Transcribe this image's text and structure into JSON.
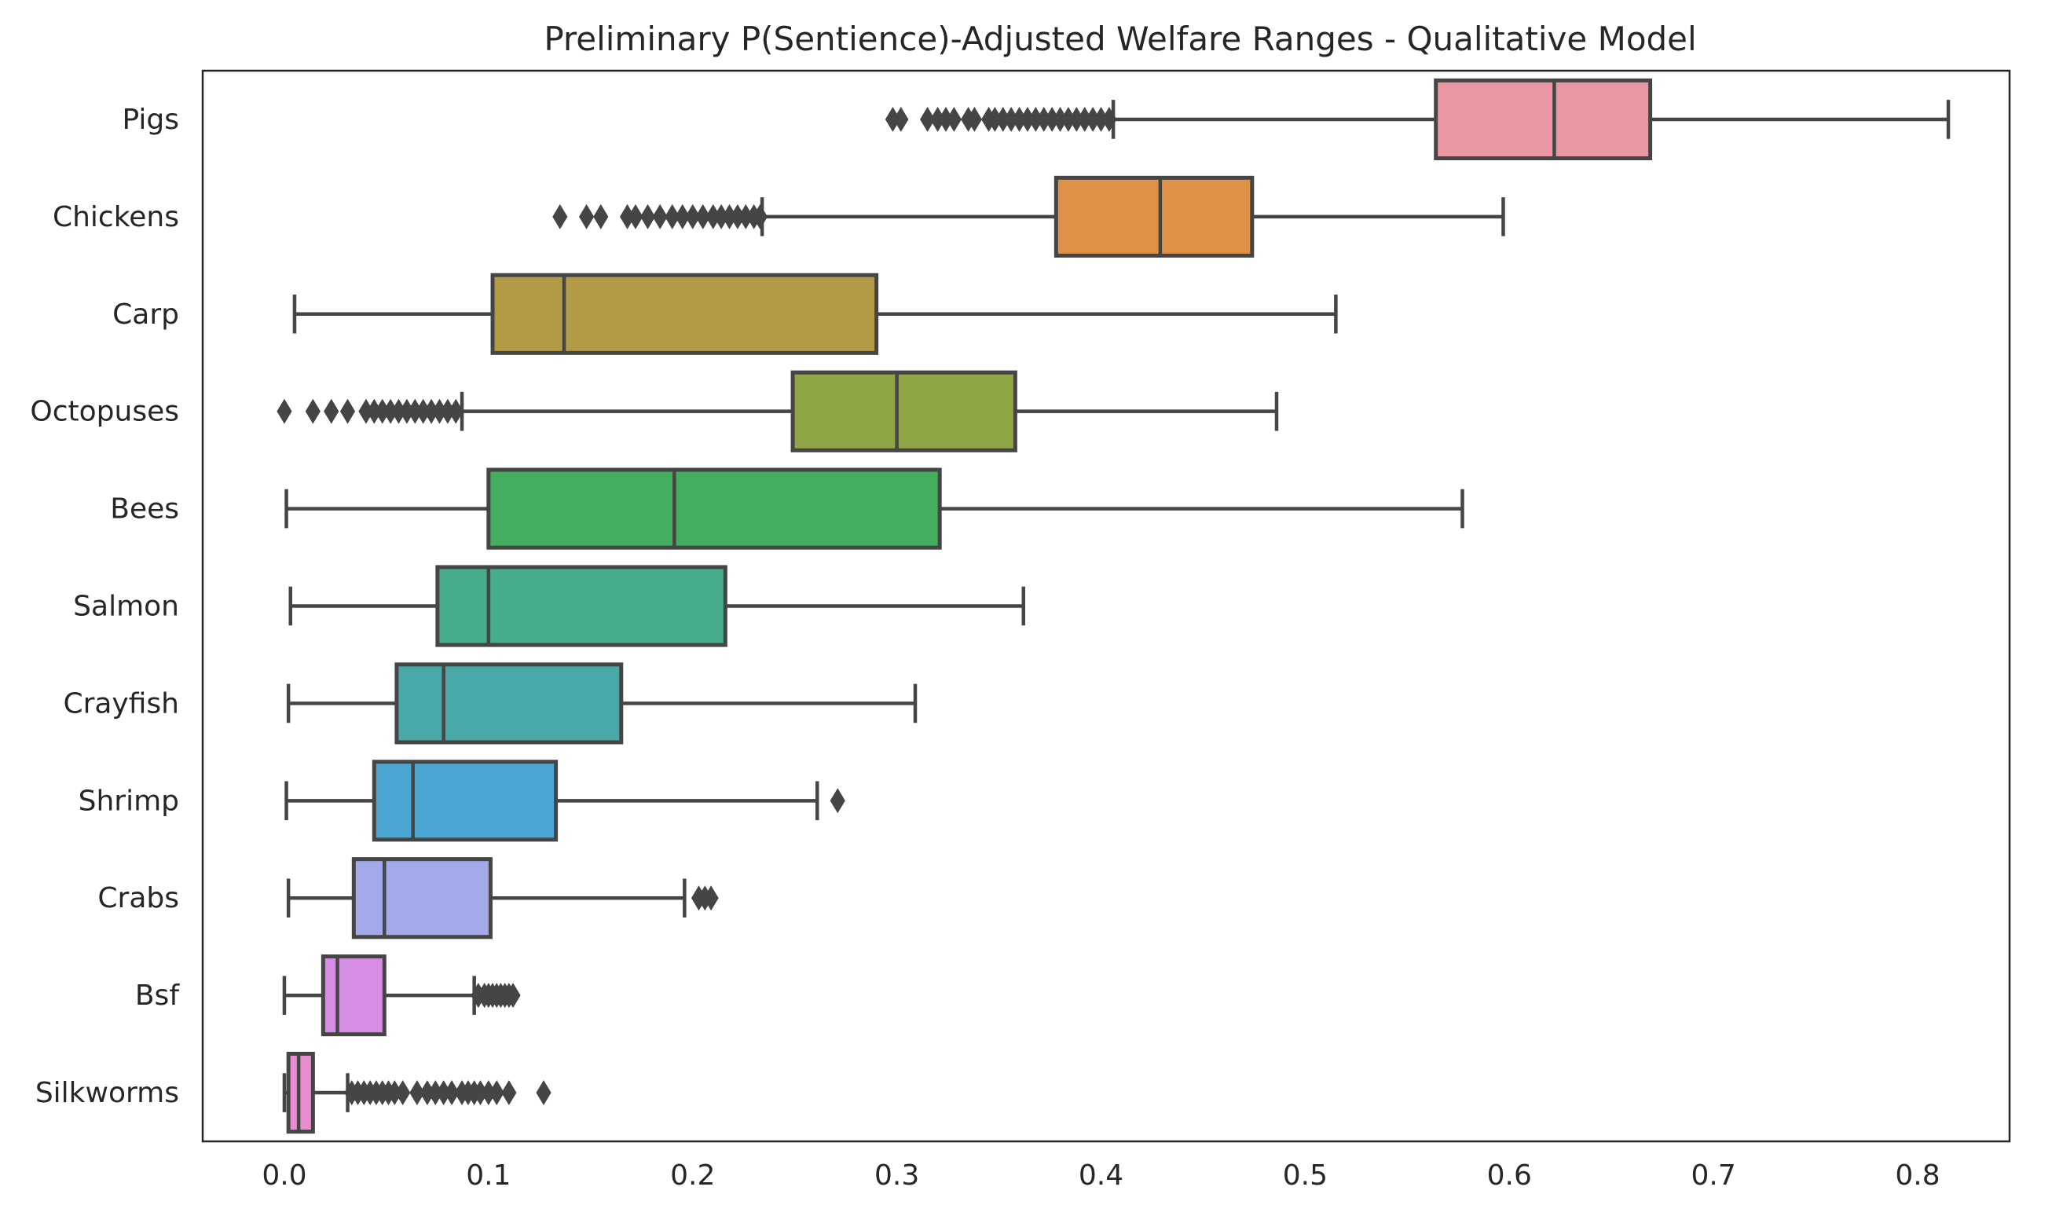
{
  "chart_data": {
    "type": "boxplot",
    "orientation": "horizontal",
    "title": "Preliminary P(Sentience)-Adjusted Welfare Ranges - Qualitative Model",
    "xlabel": "",
    "ylabel": "",
    "xlim": [
      -0.04,
      0.845
    ],
    "xticks": [
      0.0,
      0.1,
      0.2,
      0.3,
      0.4,
      0.5,
      0.6,
      0.7,
      0.8
    ],
    "xtick_labels": [
      "0.0",
      "0.1",
      "0.2",
      "0.3",
      "0.4",
      "0.5",
      "0.6",
      "0.7",
      "0.8"
    ],
    "grid": false,
    "series": [
      {
        "name": "Pigs",
        "color": "#ea96a3",
        "whisker_low": 0.406,
        "q1": 0.564,
        "median": 0.622,
        "q3": 0.669,
        "whisker_high": 0.815,
        "outliers": [
          0.298,
          0.302,
          0.315,
          0.32,
          0.324,
          0.328,
          0.335,
          0.338,
          0.345,
          0.348,
          0.352,
          0.356,
          0.36,
          0.364,
          0.368,
          0.372,
          0.376,
          0.38,
          0.384,
          0.388,
          0.392,
          0.396,
          0.4,
          0.404
        ]
      },
      {
        "name": "Chickens",
        "color": "#e09148",
        "whisker_low": 0.234,
        "q1": 0.378,
        "median": 0.429,
        "q3": 0.474,
        "whisker_high": 0.597,
        "outliers": [
          0.135,
          0.148,
          0.155,
          0.168,
          0.172,
          0.178,
          0.184,
          0.19,
          0.195,
          0.2,
          0.205,
          0.21,
          0.214,
          0.218,
          0.222,
          0.226,
          0.23,
          0.233
        ]
      },
      {
        "name": "Carp",
        "color": "#b29a47",
        "whisker_low": 0.005,
        "q1": 0.102,
        "median": 0.137,
        "q3": 0.29,
        "whisker_high": 0.515,
        "outliers": []
      },
      {
        "name": "Octopuses",
        "color": "#8ea645",
        "whisker_low": 0.087,
        "q1": 0.249,
        "median": 0.3,
        "q3": 0.358,
        "whisker_high": 0.486,
        "outliers": [
          0.0,
          0.014,
          0.023,
          0.031,
          0.04,
          0.044,
          0.048,
          0.052,
          0.056,
          0.06,
          0.064,
          0.068,
          0.072,
          0.076,
          0.08,
          0.084
        ]
      },
      {
        "name": "Bees",
        "color": "#45ad5e",
        "whisker_low": 0.001,
        "q1": 0.1,
        "median": 0.191,
        "q3": 0.321,
        "whisker_high": 0.577,
        "outliers": []
      },
      {
        "name": "Salmon",
        "color": "#47ab8e",
        "whisker_low": 0.003,
        "q1": 0.075,
        "median": 0.1,
        "q3": 0.216,
        "whisker_high": 0.362,
        "outliers": []
      },
      {
        "name": "Crayfish",
        "color": "#48a8a8",
        "whisker_low": 0.002,
        "q1": 0.055,
        "median": 0.078,
        "q3": 0.165,
        "whisker_high": 0.309,
        "outliers": []
      },
      {
        "name": "Shrimp",
        "color": "#4ba6d4",
        "whisker_low": 0.001,
        "q1": 0.044,
        "median": 0.063,
        "q3": 0.133,
        "whisker_high": 0.261,
        "outliers": [
          0.271
        ]
      },
      {
        "name": "Crabs",
        "color": "#a4aae9",
        "whisker_low": 0.002,
        "q1": 0.034,
        "median": 0.049,
        "q3": 0.101,
        "whisker_high": 0.196,
        "outliers": [
          0.203,
          0.206,
          0.209
        ]
      },
      {
        "name": "Bsf",
        "color": "#d68ee4",
        "whisker_low": 0.0,
        "q1": 0.019,
        "median": 0.026,
        "q3": 0.049,
        "whisker_high": 0.093,
        "outliers": [
          0.095,
          0.098,
          0.1,
          0.102,
          0.104,
          0.106,
          0.108,
          0.11,
          0.112
        ]
      },
      {
        "name": "Silkworms",
        "color": "#e88ccf",
        "whisker_low": 0.0,
        "q1": 0.002,
        "median": 0.007,
        "q3": 0.014,
        "whisker_high": 0.031,
        "outliers": [
          0.033,
          0.036,
          0.039,
          0.042,
          0.045,
          0.048,
          0.051,
          0.054,
          0.058,
          0.065,
          0.07,
          0.074,
          0.078,
          0.082,
          0.087,
          0.09,
          0.093,
          0.096,
          0.1,
          0.104,
          0.11,
          0.127
        ]
      }
    ]
  }
}
